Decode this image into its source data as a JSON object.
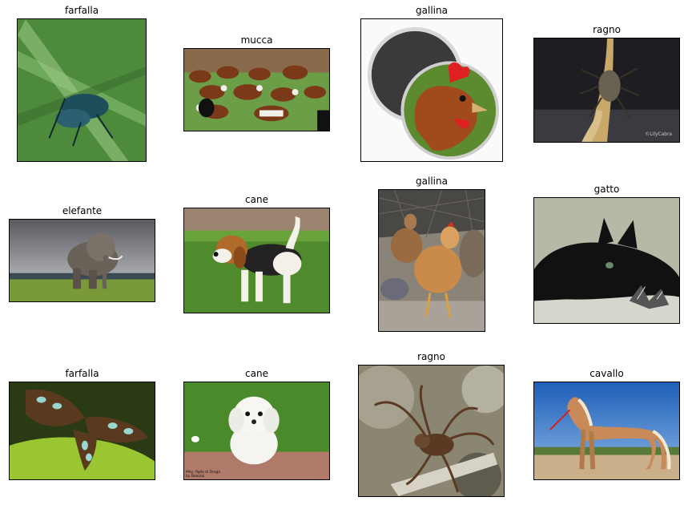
{
  "grid": {
    "images": [
      {
        "label": "farfalla",
        "subject": "butterfly-photo"
      },
      {
        "label": "mucca",
        "subject": "cows-photo"
      },
      {
        "label": "gallina",
        "subject": "chicken-magnet-photo"
      },
      {
        "label": "ragno",
        "subject": "spider-photo"
      },
      {
        "label": "elefante",
        "subject": "elephant-photo"
      },
      {
        "label": "cane",
        "subject": "beagle-photo"
      },
      {
        "label": "gallina",
        "subject": "hens-photo"
      },
      {
        "label": "gatto",
        "subject": "black-cat-photo"
      },
      {
        "label": "farfalla",
        "subject": "butterfly-wings-photo"
      },
      {
        "label": "cane",
        "subject": "white-puppy-photo"
      },
      {
        "label": "ragno",
        "subject": "spider-closeup-photo"
      },
      {
        "label": "cavallo",
        "subject": "horse-photo"
      }
    ],
    "watermark_1": "©LilyCabra",
    "watermark_2": "Mey, figlio di Draga\nby Beaulai"
  }
}
